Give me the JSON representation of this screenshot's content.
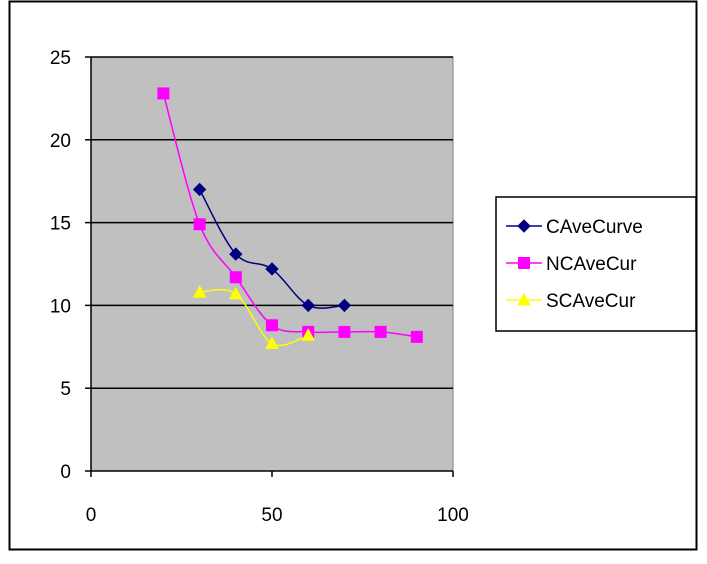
{
  "chart_data": {
    "type": "scatter",
    "title": "",
    "xlabel": "",
    "ylabel": "",
    "xlim": [
      0,
      100
    ],
    "ylim": [
      0,
      25
    ],
    "xticks": [
      0,
      50,
      100
    ],
    "yticks": [
      0,
      5,
      10,
      15,
      20,
      25
    ],
    "grid": "horizontal",
    "plot_background": "#c0c0c0",
    "smoothed_lines": true,
    "legend_position": "right",
    "series": [
      {
        "name": "CAveCurve",
        "color": "#000080",
        "marker": "diamond",
        "x": [
          30,
          40,
          50,
          60,
          70
        ],
        "y": [
          17.0,
          13.1,
          12.2,
          10.0,
          10.0
        ]
      },
      {
        "name": "NCAveCur",
        "color": "#ff00ff",
        "marker": "square",
        "x": [
          20,
          30,
          40,
          50,
          60,
          70,
          80,
          90
        ],
        "y": [
          22.8,
          14.9,
          11.7,
          8.8,
          8.4,
          8.4,
          8.4,
          8.1
        ]
      },
      {
        "name": "SCAveCur",
        "color": "#ffff00",
        "marker": "triangle",
        "x": [
          30,
          40,
          50,
          60
        ],
        "y": [
          10.8,
          10.7,
          7.7,
          8.2
        ]
      }
    ]
  }
}
